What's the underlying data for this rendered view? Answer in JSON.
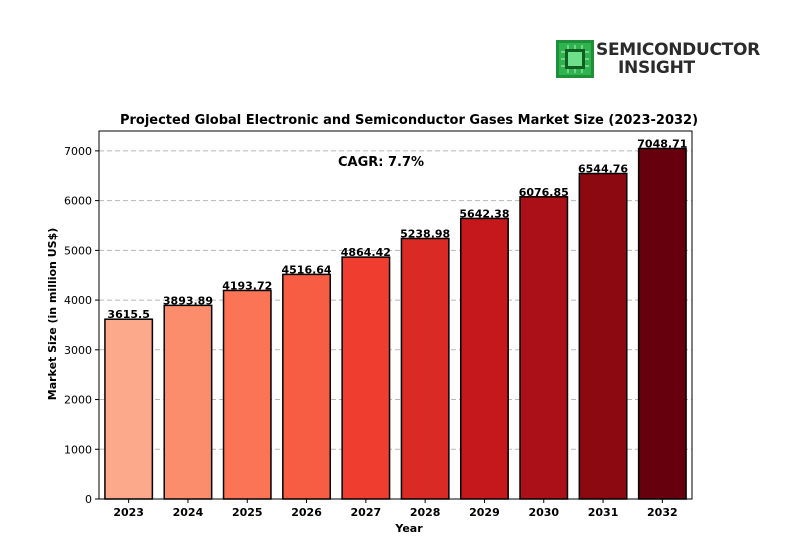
{
  "brand": {
    "line1": "SEMICONDUCTOR",
    "line2": "INSIGHT"
  },
  "chart_data": {
    "type": "bar",
    "title": "Projected Global Electronic and Semiconductor Gases Market Size (2023-2032)",
    "xlabel": "Year",
    "ylabel": "Market Size (in million US$)",
    "categories": [
      "2023",
      "2024",
      "2025",
      "2026",
      "2027",
      "2028",
      "2029",
      "2030",
      "2031",
      "2032"
    ],
    "values": [
      3615.5,
      3893.89,
      4193.72,
      4516.64,
      4864.42,
      5238.98,
      5642.38,
      6076.85,
      6544.76,
      7048.71
    ],
    "value_labels": [
      "3615.5",
      "3893.89",
      "4193.72",
      "4516.64",
      "4864.42",
      "5238.98",
      "5642.38",
      "6076.85",
      "6544.76",
      "7048.71"
    ],
    "ylim": [
      0,
      7400
    ],
    "yticks": [
      0,
      1000,
      2000,
      3000,
      4000,
      5000,
      6000,
      7000
    ],
    "grid": "horizontal dashed",
    "annotation": "CAGR: 7.7%",
    "colors": [
      "#fca98b",
      "#fc8d6c",
      "#fb7455",
      "#f65d43",
      "#ef3e2f",
      "#da2a25",
      "#c5181c",
      "#ab0f18",
      "#8d0912",
      "#67000d"
    ]
  }
}
